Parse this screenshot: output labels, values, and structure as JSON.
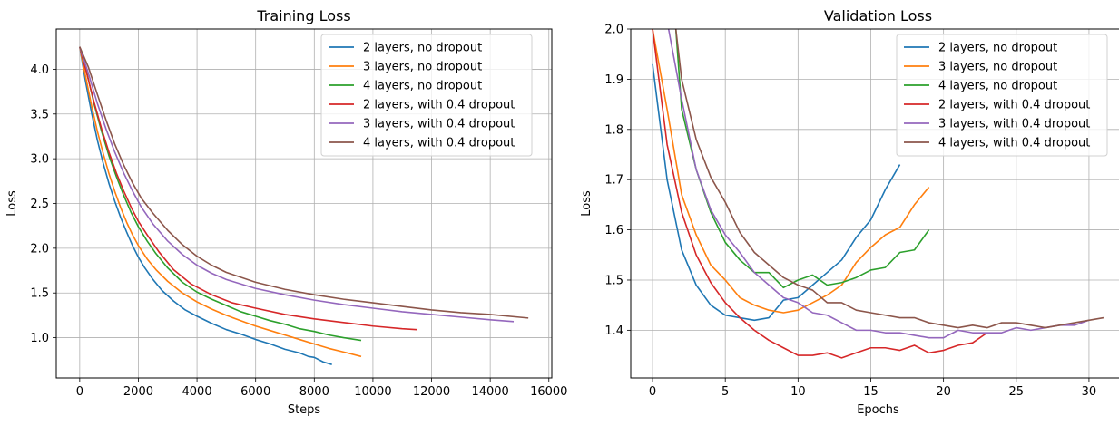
{
  "chart_data": [
    {
      "type": "line",
      "title": "Training Loss",
      "xlabel": "Steps",
      "ylabel": "Loss",
      "xlim": [
        -800,
        16100
      ],
      "ylim": [
        0.55,
        4.45
      ],
      "xticks": [
        0,
        2000,
        4000,
        6000,
        8000,
        10000,
        12000,
        14000,
        16000
      ],
      "yticks": [
        1.0,
        1.5,
        2.0,
        2.5,
        3.0,
        3.5,
        4.0
      ],
      "grid": true,
      "legend": "top-right",
      "series": [
        {
          "name": "2 layers, no dropout",
          "color": "#1f77b4",
          "x": [
            0,
            200,
            400,
            600,
            800,
            1000,
            1200,
            1400,
            1600,
            1800,
            2000,
            2200,
            2500,
            2800,
            3200,
            3600,
            4000,
            4500,
            5000,
            5500,
            6000,
            6500,
            7000,
            7500,
            7800,
            8000,
            8300,
            8600
          ],
          "y": [
            4.25,
            3.86,
            3.52,
            3.21,
            2.95,
            2.72,
            2.52,
            2.34,
            2.18,
            2.03,
            1.9,
            1.79,
            1.65,
            1.53,
            1.41,
            1.31,
            1.24,
            1.16,
            1.09,
            1.04,
            0.98,
            0.93,
            0.87,
            0.83,
            0.79,
            0.78,
            0.73,
            0.7
          ]
        },
        {
          "name": "3 layers, no dropout",
          "color": "#ff7f0e",
          "x": [
            0,
            200,
            400,
            600,
            800,
            1000,
            1200,
            1400,
            1600,
            1800,
            2000,
            2300,
            2600,
            3000,
            3500,
            4000,
            4500,
            5000,
            5500,
            6000,
            6500,
            7000,
            7500,
            8000,
            8500,
            9000,
            9600
          ],
          "y": [
            4.25,
            3.92,
            3.6,
            3.31,
            3.06,
            2.83,
            2.63,
            2.45,
            2.29,
            2.15,
            2.03,
            1.88,
            1.76,
            1.63,
            1.5,
            1.4,
            1.32,
            1.25,
            1.19,
            1.13,
            1.08,
            1.03,
            0.98,
            0.93,
            0.88,
            0.84,
            0.79
          ]
        },
        {
          "name": "4 layers, no dropout",
          "color": "#2ca02c",
          "x": [
            0,
            250,
            500,
            750,
            1000,
            1250,
            1500,
            1750,
            2000,
            2300,
            2600,
            3000,
            3500,
            4000,
            4500,
            5000,
            5500,
            6000,
            6500,
            7000,
            7500,
            8000,
            8500,
            9000,
            9600
          ],
          "y": [
            4.25,
            3.95,
            3.6,
            3.3,
            3.03,
            2.8,
            2.59,
            2.4,
            2.24,
            2.08,
            1.94,
            1.78,
            1.62,
            1.51,
            1.43,
            1.36,
            1.29,
            1.24,
            1.19,
            1.15,
            1.1,
            1.07,
            1.03,
            1.0,
            0.97
          ]
        },
        {
          "name": "2 layers, with 0.4 dropout",
          "color": "#d62728",
          "x": [
            0,
            250,
            500,
            750,
            1000,
            1250,
            1500,
            1750,
            2000,
            2300,
            2700,
            3200,
            3800,
            4500,
            5200,
            6000,
            7000,
            8000,
            9000,
            10000,
            11000,
            11500
          ],
          "y": [
            4.25,
            3.94,
            3.62,
            3.33,
            3.07,
            2.84,
            2.64,
            2.46,
            2.3,
            2.15,
            1.96,
            1.76,
            1.6,
            1.48,
            1.39,
            1.33,
            1.26,
            1.21,
            1.17,
            1.13,
            1.1,
            1.09
          ]
        },
        {
          "name": "3 layers, with 0.4 dropout",
          "color": "#9467bd",
          "x": [
            0,
            300,
            600,
            900,
            1200,
            1500,
            1800,
            2100,
            2500,
            3000,
            3500,
            4000,
            4500,
            5000,
            6000,
            7000,
            8000,
            9000,
            10000,
            11000,
            12000,
            13000,
            14000,
            14800
          ],
          "y": [
            4.25,
            3.95,
            3.62,
            3.33,
            3.07,
            2.84,
            2.64,
            2.46,
            2.27,
            2.08,
            1.93,
            1.81,
            1.72,
            1.65,
            1.55,
            1.48,
            1.42,
            1.37,
            1.33,
            1.29,
            1.26,
            1.23,
            1.2,
            1.18
          ]
        },
        {
          "name": "4 layers, with 0.4 dropout",
          "color": "#8c564b",
          "x": [
            0,
            300,
            600,
            900,
            1200,
            1500,
            1800,
            2100,
            2500,
            3000,
            3500,
            4000,
            4500,
            5000,
            6000,
            7000,
            8000,
            9000,
            10000,
            11000,
            12000,
            13000,
            14000,
            15300
          ],
          "y": [
            4.25,
            4.02,
            3.72,
            3.43,
            3.16,
            2.93,
            2.73,
            2.56,
            2.39,
            2.2,
            2.04,
            1.91,
            1.81,
            1.73,
            1.62,
            1.54,
            1.48,
            1.43,
            1.39,
            1.35,
            1.31,
            1.28,
            1.26,
            1.22
          ]
        }
      ]
    },
    {
      "type": "line",
      "title": "Validation Loss",
      "xlabel": "Epochs",
      "ylabel": "Loss",
      "xlim": [
        -1.5,
        32.5
      ],
      "ylim": [
        1.305,
        2.0
      ],
      "xticks": [
        0,
        5,
        10,
        15,
        20,
        25,
        30
      ],
      "yticks": [
        1.4,
        1.5,
        1.6,
        1.7,
        1.8,
        1.9,
        2.0
      ],
      "grid": true,
      "legend": "top-right",
      "series": [
        {
          "name": "2 layers, no dropout",
          "color": "#1f77b4",
          "x": [
            0,
            1,
            2,
            3,
            4,
            5,
            6,
            7,
            8,
            9,
            10,
            11,
            12,
            13,
            14,
            15,
            16,
            17
          ],
          "y": [
            1.93,
            1.7,
            1.56,
            1.49,
            1.45,
            1.43,
            1.425,
            1.42,
            1.425,
            1.46,
            1.465,
            1.49,
            1.515,
            1.54,
            1.585,
            1.62,
            1.68,
            1.73
          ]
        },
        {
          "name": "3 layers, no dropout",
          "color": "#ff7f0e",
          "x": [
            0,
            1,
            2,
            3,
            4,
            5,
            6,
            7,
            8,
            9,
            10,
            11,
            12,
            13,
            14,
            15,
            16,
            17,
            18,
            19
          ],
          "y": [
            2.0,
            1.84,
            1.67,
            1.59,
            1.53,
            1.5,
            1.465,
            1.45,
            1.44,
            1.435,
            1.44,
            1.455,
            1.47,
            1.49,
            1.535,
            1.565,
            1.59,
            1.605,
            1.65,
            1.685
          ]
        },
        {
          "name": "4 layers, no dropout",
          "color": "#2ca02c",
          "x": [
            1.6,
            2,
            3,
            4,
            5,
            6,
            7,
            8,
            9,
            10,
            11,
            12,
            13,
            14,
            15,
            16,
            17,
            18,
            19
          ],
          "y": [
            2.0,
            1.84,
            1.72,
            1.635,
            1.575,
            1.54,
            1.515,
            1.515,
            1.485,
            1.5,
            1.51,
            1.49,
            1.495,
            1.505,
            1.52,
            1.525,
            1.555,
            1.56,
            1.6
          ]
        },
        {
          "name": "2 layers, with 0.4 dropout",
          "color": "#d62728",
          "x": [
            0,
            1,
            2,
            3,
            4,
            5,
            6,
            7,
            8,
            9,
            10,
            11,
            12,
            13,
            14,
            15,
            16,
            17,
            18,
            19,
            20,
            21,
            22,
            23
          ],
          "y": [
            2.0,
            1.77,
            1.635,
            1.55,
            1.495,
            1.455,
            1.425,
            1.4,
            1.38,
            1.365,
            1.35,
            1.35,
            1.355,
            1.345,
            1.355,
            1.365,
            1.365,
            1.36,
            1.37,
            1.355,
            1.36,
            1.37,
            1.375,
            1.395
          ]
        },
        {
          "name": "3 layers, with 0.4 dropout",
          "color": "#9467bd",
          "x": [
            1.1,
            2,
            3,
            4,
            5,
            6,
            7,
            8,
            9,
            10,
            11,
            12,
            13,
            14,
            15,
            16,
            17,
            18,
            19,
            20,
            21,
            22,
            23,
            24,
            25,
            26,
            27,
            28,
            29,
            30
          ],
          "y": [
            2.0,
            1.86,
            1.72,
            1.64,
            1.59,
            1.555,
            1.515,
            1.49,
            1.465,
            1.455,
            1.435,
            1.43,
            1.415,
            1.4,
            1.4,
            1.395,
            1.395,
            1.39,
            1.385,
            1.385,
            1.4,
            1.395,
            1.395,
            1.395,
            1.405,
            1.4,
            1.405,
            1.41,
            1.41,
            1.42
          ]
        },
        {
          "name": "4 layers, with 0.4 dropout",
          "color": "#8c564b",
          "x": [
            1.6,
            2,
            3,
            4,
            5,
            6,
            7,
            8,
            9,
            10,
            11,
            12,
            13,
            14,
            15,
            16,
            17,
            18,
            19,
            20,
            21,
            22,
            23,
            24,
            25,
            26,
            27,
            28,
            29,
            30,
            31
          ],
          "y": [
            2.0,
            1.9,
            1.78,
            1.705,
            1.655,
            1.595,
            1.555,
            1.53,
            1.505,
            1.49,
            1.48,
            1.455,
            1.455,
            1.44,
            1.435,
            1.43,
            1.425,
            1.425,
            1.415,
            1.41,
            1.405,
            1.41,
            1.405,
            1.415,
            1.415,
            1.41,
            1.405,
            1.41,
            1.415,
            1.42,
            1.425
          ]
        }
      ]
    }
  ]
}
